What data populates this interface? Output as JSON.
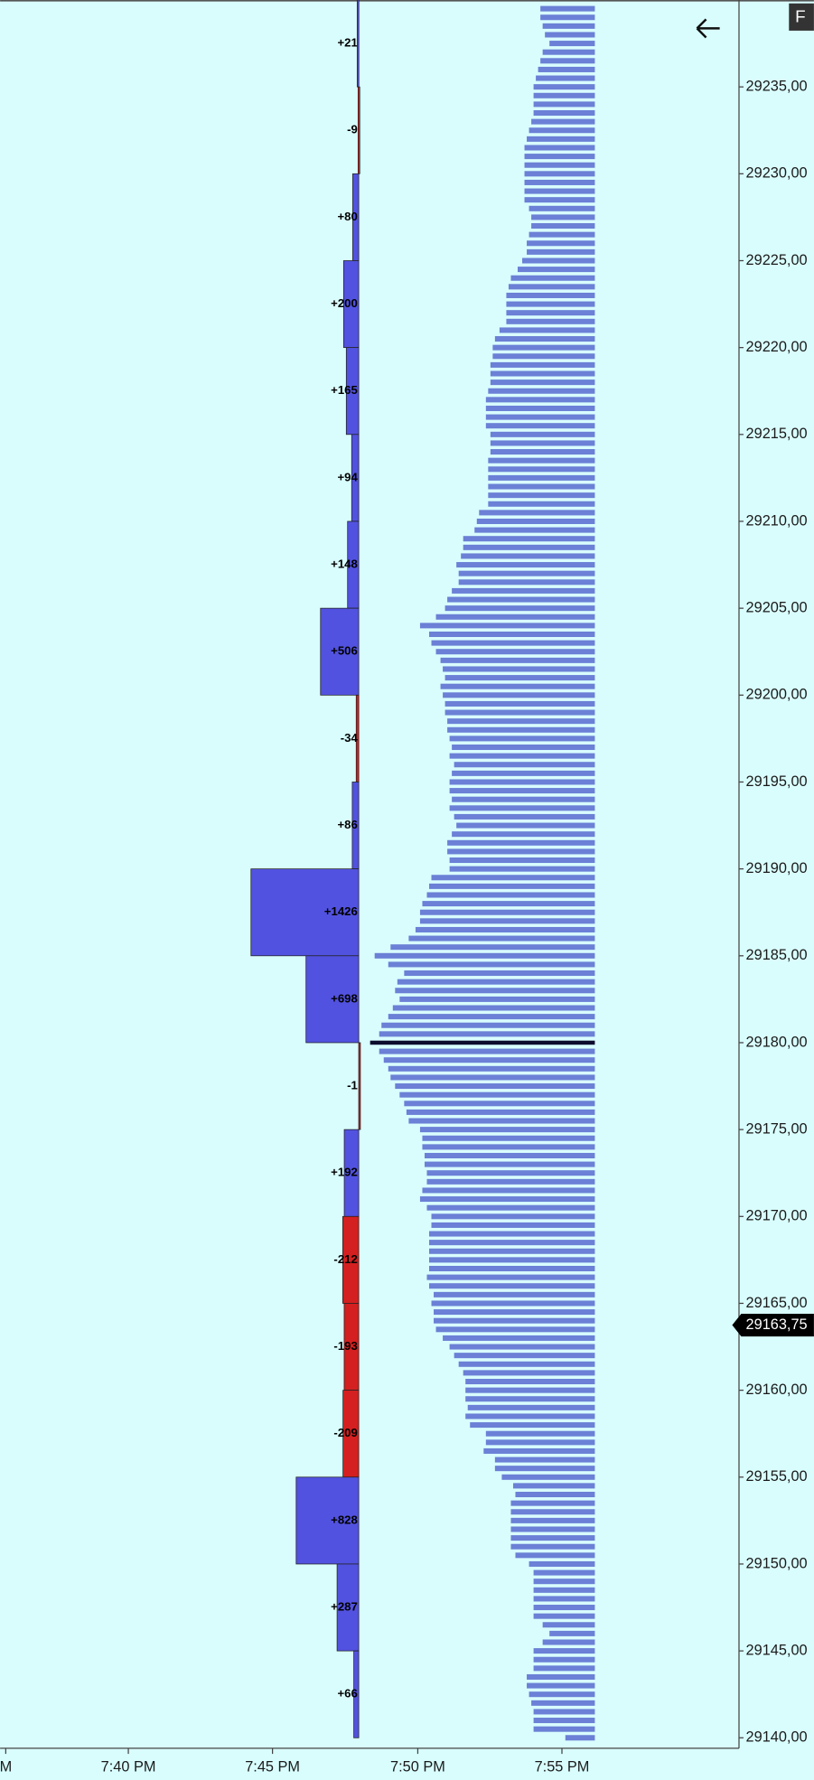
{
  "chart_data": {
    "type": "footprint",
    "ylim": [
      29139.4,
      29240
    ],
    "yticks": [
      {
        "value": 29140,
        "label": "29140,00"
      },
      {
        "value": 29145,
        "label": "29145,00"
      },
      {
        "value": 29150,
        "label": "29150,00"
      },
      {
        "value": 29155,
        "label": "29155,00"
      },
      {
        "value": 29160,
        "label": "29160,00"
      },
      {
        "value": 29165,
        "label": "29165,00"
      },
      {
        "value": 29170,
        "label": "29170,00"
      },
      {
        "value": 29175,
        "label": "29175,00"
      },
      {
        "value": 29180,
        "label": "29180,00"
      },
      {
        "value": 29185,
        "label": "29185,00"
      },
      {
        "value": 29190,
        "label": "29190,00"
      },
      {
        "value": 29195,
        "label": "29195,00"
      },
      {
        "value": 29200,
        "label": "29200,00"
      },
      {
        "value": 29205,
        "label": "29205,00"
      },
      {
        "value": 29210,
        "label": "29210,00"
      },
      {
        "value": 29215,
        "label": "29215,00"
      },
      {
        "value": 29220,
        "label": "29220,00"
      },
      {
        "value": 29225,
        "label": "29225,00"
      },
      {
        "value": 29230,
        "label": "29230,00"
      },
      {
        "value": 29235,
        "label": "29235,00"
      }
    ],
    "time_labels": [
      "M",
      "7:40 PM",
      "7:45 PM",
      "7:50 PM",
      "7:55 PM"
    ],
    "last_price": {
      "value": 29163.75,
      "label": "29163,75"
    },
    "button": "F",
    "delta": {
      "type": "bar",
      "up_color": "#5252e0",
      "down_color": "#d42020",
      "lows": [
        29235,
        29230,
        29225,
        29220,
        29215,
        29210,
        29205,
        29200,
        29195,
        29190,
        29185,
        29180,
        29175,
        29170,
        29165,
        29160,
        29155,
        29150,
        29145,
        29140
      ],
      "values": [
        21,
        -9,
        80,
        200,
        165,
        94,
        148,
        506,
        -34,
        86,
        1426,
        698,
        -1,
        192,
        -212,
        -193,
        -209,
        828,
        287,
        66
      ],
      "value_labels": [
        "+21",
        "-9",
        "+80",
        "+200",
        "+165",
        "+94",
        "+148",
        "+506",
        "-34",
        "+86",
        "+1426",
        "+698",
        "-1",
        "+192",
        "-212",
        "-193",
        "-209",
        "+828",
        "+287",
        "+66"
      ]
    },
    "profile": {
      "type": "bar",
      "color": "#6b80d6",
      "poc_color": "#0c0c2e",
      "levels": [
        29239.5,
        29239,
        29238.5,
        29238,
        29237.5,
        29237,
        29236.5,
        29236,
        29235.5,
        29235,
        29234.5,
        29234,
        29233.5,
        29233,
        29232.5,
        29232,
        29231.5,
        29231,
        29230.5,
        29230,
        29229.5,
        29229,
        29228.5,
        29228,
        29227.5,
        29227,
        29226.5,
        29226,
        29225.5,
        29225,
        29224.5,
        29224,
        29223.5,
        29223,
        29222.5,
        29222,
        29221.5,
        29221,
        29220.5,
        29220,
        29219.5,
        29219,
        29218.5,
        29218,
        29217.5,
        29217,
        29216.5,
        29216,
        29215.5,
        29215,
        29214.5,
        29214,
        29213.5,
        29213,
        29212.5,
        29212,
        29211.5,
        29211,
        29210.5,
        29210,
        29209.5,
        29209,
        29208.5,
        29208,
        29207.5,
        29207,
        29206.5,
        29206,
        29205.5,
        29205,
        29204.5,
        29204,
        29203.5,
        29203,
        29202.5,
        29202,
        29201.5,
        29201,
        29200.5,
        29200,
        29199.5,
        29199,
        29198.5,
        29198,
        29197.5,
        29197,
        29196.5,
        29196,
        29195.5,
        29195,
        29194.5,
        29194,
        29193.5,
        29193,
        29192.5,
        29192,
        29191.5,
        29191,
        29190.5,
        29190,
        29189.5,
        29189,
        29188.5,
        29188,
        29187.5,
        29187,
        29186.5,
        29186,
        29185.5,
        29185,
        29184.5,
        29184,
        29183.5,
        29183,
        29182.5,
        29182,
        29181.5,
        29181,
        29180.5,
        29180,
        29179.5,
        29179,
        29178.5,
        29178,
        29177.5,
        29177,
        29176.5,
        29176,
        29175.5,
        29175,
        29174.5,
        29174,
        29173.5,
        29173,
        29172.5,
        29172,
        29171.5,
        29171,
        29170.5,
        29170,
        29169.5,
        29169,
        29168.5,
        29168,
        29167.5,
        29167,
        29166.5,
        29166,
        29165.5,
        29165,
        29164.5,
        29164,
        29163.5,
        29163,
        29162.5,
        29162,
        29161.5,
        29161,
        29160.5,
        29160,
        29159.5,
        29159,
        29158.5,
        29158,
        29157.5,
        29157,
        29156.5,
        29156,
        29155.5,
        29155,
        29154.5,
        29154,
        29153.5,
        29153,
        29152.5,
        29152,
        29151.5,
        29151,
        29150.5,
        29150,
        29149.5,
        29149,
        29148.5,
        29148,
        29147.5,
        29147,
        29146.5,
        29146,
        29145.5,
        29145,
        29144.5,
        29144,
        29143.5,
        29143,
        29142.5,
        29142,
        29141.5,
        29141,
        29140.5,
        29140
      ],
      "values": [
        48,
        48,
        46,
        44,
        40,
        46,
        48,
        50,
        52,
        54,
        54,
        54,
        54,
        56,
        58,
        60,
        62,
        62,
        62,
        62,
        62,
        62,
        62,
        58,
        56,
        56,
        58,
        60,
        60,
        64,
        68,
        74,
        76,
        78,
        78,
        78,
        78,
        84,
        88,
        90,
        90,
        92,
        92,
        92,
        94,
        96,
        96,
        96,
        96,
        92,
        92,
        92,
        94,
        94,
        94,
        94,
        94,
        94,
        102,
        104,
        106,
        116,
        116,
        118,
        122,
        120,
        120,
        126,
        130,
        132,
        140,
        154,
        146,
        144,
        140,
        136,
        134,
        132,
        136,
        134,
        132,
        132,
        130,
        130,
        128,
        126,
        128,
        124,
        126,
        128,
        128,
        126,
        128,
        124,
        122,
        126,
        130,
        130,
        128,
        128,
        144,
        146,
        148,
        152,
        154,
        154,
        158,
        164,
        180,
        194,
        182,
        168,
        174,
        176,
        172,
        178,
        182,
        188,
        190,
        198,
        190,
        186,
        182,
        180,
        176,
        172,
        168,
        166,
        164,
        154,
        152,
        152,
        150,
        150,
        148,
        148,
        152,
        154,
        148,
        144,
        144,
        146,
        146,
        146,
        146,
        146,
        148,
        146,
        142,
        144,
        142,
        142,
        140,
        134,
        128,
        124,
        120,
        116,
        114,
        114,
        114,
        112,
        114,
        110,
        96,
        96,
        98,
        88,
        88,
        82,
        72,
        70,
        74,
        74,
        74,
        74,
        74,
        74,
        70,
        58,
        54,
        54,
        54,
        54,
        54,
        54,
        46,
        40,
        46,
        54,
        54,
        54,
        60,
        60,
        58,
        56,
        54,
        54,
        54,
        26
      ]
    }
  }
}
